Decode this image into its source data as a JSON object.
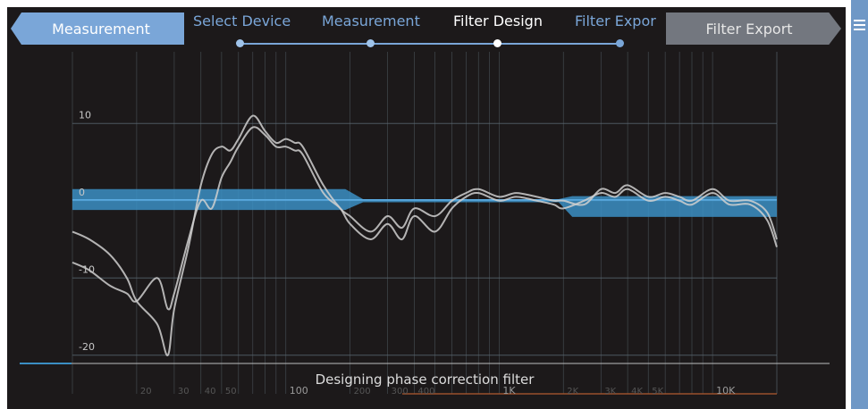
{
  "nav": {
    "back_label": "Measurement",
    "next_label": "Filter Export",
    "steps": [
      {
        "label": "Select Device",
        "state": "done"
      },
      {
        "label": "Measurement",
        "state": "done"
      },
      {
        "label": "Filter Design",
        "state": "current"
      },
      {
        "label": "Filter Expor",
        "state": "upcoming"
      }
    ],
    "menu_icon": "hamburger-menu-icon"
  },
  "status": {
    "text": "Designing phase correction filter"
  },
  "colors": {
    "background": "#1c191a",
    "accent": "#7aa6d8",
    "target_band": "#3b8fc4",
    "curve": "#cfcfcf",
    "grid": "#5a6670"
  },
  "chart_data": {
    "type": "line",
    "x_scale": "log",
    "xlim": [
      10,
      20000
    ],
    "ylim": [
      -25,
      15
    ],
    "y_ticks": [
      10,
      0,
      -10,
      -20
    ],
    "y_tick_labels": [
      "10",
      "0",
      "-10",
      "-20"
    ],
    "x_tick_labels": [
      {
        "value": 20,
        "label": "20"
      },
      {
        "value": 30,
        "label": "30"
      },
      {
        "value": 40,
        "label": "40"
      },
      {
        "value": 50,
        "label": "50"
      },
      {
        "value": 100,
        "label": "100"
      },
      {
        "value": 200,
        "label": "200"
      },
      {
        "value": 300,
        "label": "300"
      },
      {
        "value": 400,
        "label": "400"
      },
      {
        "value": 1000,
        "label": "1K"
      },
      {
        "value": 2000,
        "label": "2K"
      },
      {
        "value": 3000,
        "label": "3K"
      },
      {
        "value": 4000,
        "label": "4K"
      },
      {
        "value": 5000,
        "label": "5K"
      },
      {
        "value": 10000,
        "label": "10K"
      }
    ],
    "grid": true,
    "target_band": [
      {
        "x": 10,
        "low": -1.2,
        "high": 1.5
      },
      {
        "x": 190,
        "low": -1.2,
        "high": 1.5
      },
      {
        "x": 230,
        "low": -0.2,
        "high": 0.2
      },
      {
        "x": 1900,
        "low": -0.2,
        "high": 0.2
      },
      {
        "x": 2200,
        "low": -2.1,
        "high": 0.6
      },
      {
        "x": 20000,
        "low": -2.1,
        "high": 0.6
      }
    ],
    "target_line": [
      {
        "x": 10,
        "y": 0.1
      },
      {
        "x": 20000,
        "y": 0.1
      }
    ],
    "series": [
      {
        "x": [
          10,
          12,
          15,
          18,
          20,
          25,
          28,
          30,
          35,
          40,
          45,
          50,
          55,
          60,
          70,
          80,
          90,
          100,
          110,
          120,
          150,
          180,
          200,
          250,
          300,
          350,
          400,
          500,
          600,
          700,
          800,
          1000,
          1200,
          1500,
          1800,
          2000,
          2500,
          3000,
          3500,
          4000,
          5000,
          6000,
          7000,
          8000,
          10000,
          12000,
          15000,
          18000,
          20000
        ],
        "y": [
          -4,
          -5,
          -7,
          -10,
          -13,
          -16,
          -20,
          -14,
          -6,
          2,
          6,
          7,
          6.5,
          8,
          11,
          9,
          7.5,
          8,
          7.5,
          7,
          2,
          -1,
          -2,
          -4,
          -2,
          -3.5,
          -1,
          -2,
          0,
          1,
          1.5,
          0.5,
          1,
          0.5,
          0,
          0,
          -0.5,
          1.5,
          1,
          2,
          0.5,
          1,
          0.5,
          0,
          1.5,
          0,
          0,
          -1.5,
          -5
        ]
      },
      {
        "x": [
          10,
          12,
          15,
          18,
          20,
          25,
          28,
          30,
          35,
          40,
          45,
          50,
          55,
          60,
          70,
          80,
          90,
          100,
          110,
          120,
          150,
          180,
          200,
          250,
          300,
          350,
          400,
          500,
          600,
          700,
          800,
          1000,
          1200,
          1500,
          1800,
          2000,
          2500,
          3000,
          3500,
          4000,
          5000,
          6000,
          7000,
          8000,
          10000,
          12000,
          15000,
          18000,
          20000
        ],
        "y": [
          -8,
          -9,
          -11,
          -12,
          -13,
          -10,
          -14,
          -12,
          -5,
          0,
          -1,
          3,
          5,
          7,
          9.5,
          8.5,
          7,
          7,
          6.5,
          6,
          1,
          -1,
          -3,
          -5,
          -3,
          -5,
          -2,
          -4,
          -1,
          0.5,
          1,
          0,
          0.5,
          0,
          -0.5,
          -1,
          0,
          1,
          0.5,
          1.5,
          0,
          0.5,
          0,
          -0.5,
          1,
          -0.5,
          -0.5,
          -2.5,
          -6
        ]
      }
    ]
  }
}
